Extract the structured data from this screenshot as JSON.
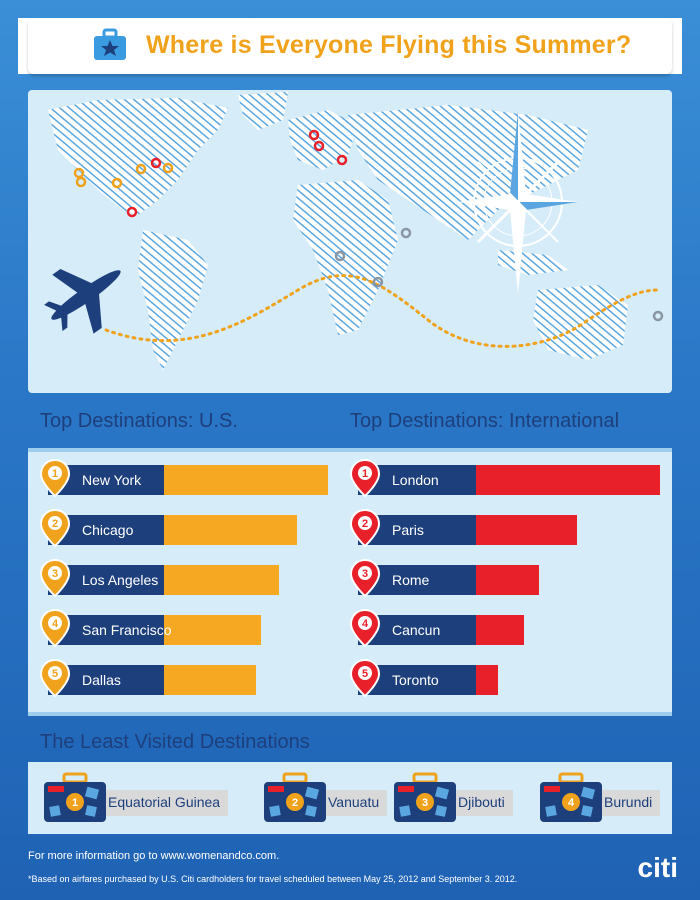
{
  "header": {
    "title": "Where is Everyone Flying this Summer?",
    "icon": "suitcase-star-icon"
  },
  "map": {
    "icons": [
      "world-map",
      "compass-rose-icon",
      "airplane-icon"
    ],
    "pins_us_color": "#f0a21c",
    "pins_intl_color": "#e8202a",
    "pins_least_color": "#8a96a3"
  },
  "chart_data": [
    {
      "type": "bar",
      "title": "Top Destinations: U.S.",
      "categories": [
        "New York",
        "Chicago",
        "Los Angeles",
        "San Francisco",
        "Dallas"
      ],
      "ranks": [
        "1",
        "2",
        "3",
        "4",
        "5"
      ],
      "values": [
        5,
        4.05,
        3.5,
        2.95,
        2.8
      ],
      "color": "#f7a823"
    },
    {
      "type": "bar",
      "title": "Top Destinations: International",
      "categories": [
        "London",
        "Paris",
        "Rome",
        "Cancun",
        "Toronto"
      ],
      "ranks": [
        "1",
        "2",
        "3",
        "4",
        "5"
      ],
      "values": [
        5,
        2.75,
        1.7,
        1.3,
        0.6
      ],
      "color": "#e8202a"
    }
  ],
  "least_visited": {
    "title": "The Least Visited Destinations",
    "items": [
      {
        "rank": "1",
        "name": "Equatorial Guinea"
      },
      {
        "rank": "2",
        "name": "Vanuatu"
      },
      {
        "rank": "3",
        "name": "Djibouti"
      },
      {
        "rank": "4",
        "name": "Burundi"
      }
    ]
  },
  "footer": {
    "more_info": "For more information go to www.womenandco.com.",
    "note": "*Based on airfares purchased by U.S. Citi cardholders for travel scheduled between May 25, 2012 and September 3. 2012.",
    "brand": "citi"
  }
}
